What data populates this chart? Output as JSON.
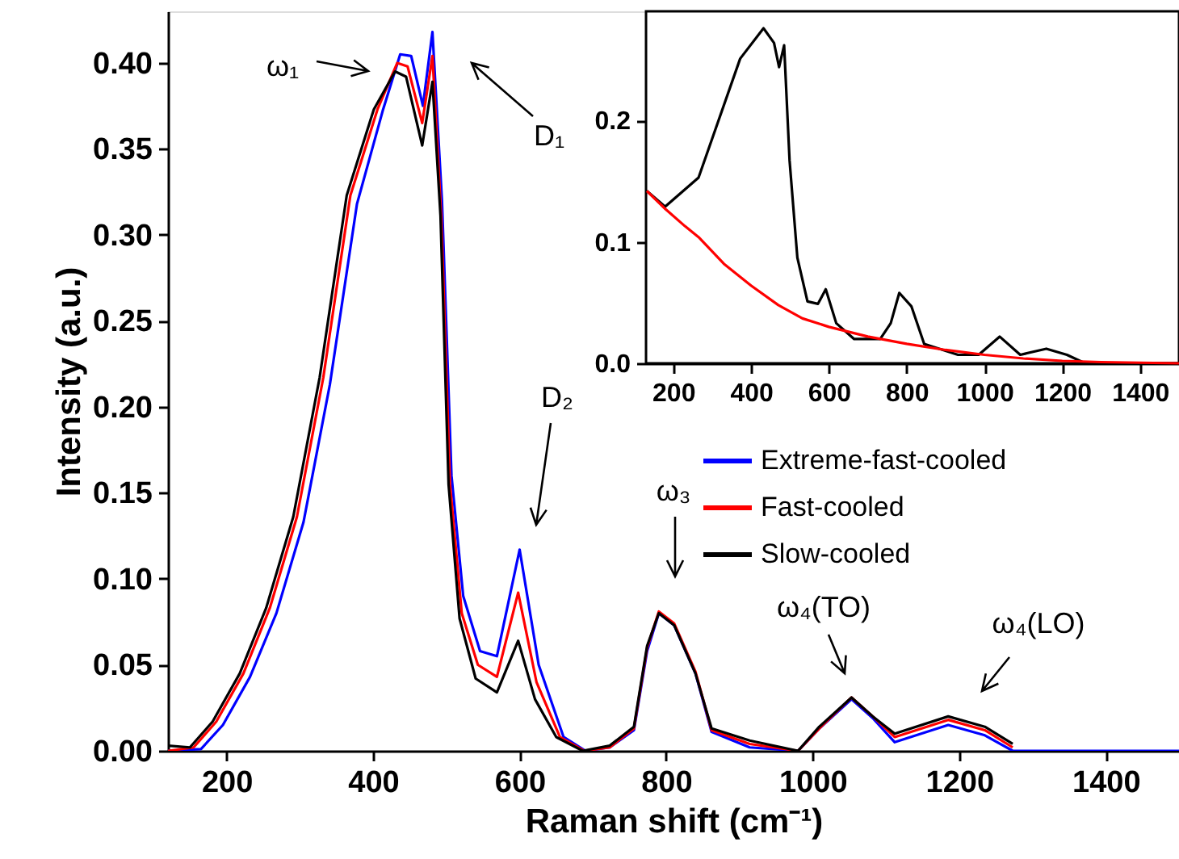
{
  "chart_data": [
    {
      "type": "line",
      "xlabel": "Raman shift (cm⁻¹)",
      "ylabel": "Intensity (a.u.)",
      "legend": "right",
      "grid": false,
      "xlim": [
        120,
        1500
      ],
      "ylim": [
        0,
        0.43
      ],
      "xticks": [
        200,
        400,
        600,
        800,
        1000,
        1200,
        1400
      ],
      "yticks": [
        {
          "value": 0,
          "label": "0.00"
        },
        0.05,
        {
          "value": 0.1,
          "label": "0.10"
        },
        0.15,
        {
          "value": 0.2,
          "label": "0.20"
        },
        0.25,
        {
          "value": 0.3,
          "label": "0.30"
        },
        0.35,
        {
          "value": 0.4,
          "label": "0.40"
        }
      ],
      "series": [
        {
          "name": "Extreme-fast-cooled",
          "color": "#0000ff",
          "x": [
            120,
            165,
            195,
            232,
            268,
            305,
            341,
            378,
            413,
            437,
            452,
            468,
            481,
            494,
            507,
            523,
            546,
            569,
            600,
            626,
            660,
            690,
            723,
            756,
            774,
            790,
            811,
            840,
            862,
            914,
            980,
            1009,
            1053,
            1082,
            1112,
            1185,
            1235,
            1273,
            1350,
            1500
          ],
          "values": [
            0.0,
            0.001,
            0.015,
            0.043,
            0.08,
            0.133,
            0.213,
            0.318,
            0.372,
            0.405,
            0.404,
            0.375,
            0.418,
            0.32,
            0.16,
            0.09,
            0.058,
            0.055,
            0.117,
            0.05,
            0.008,
            0.0,
            0.002,
            0.012,
            0.058,
            0.08,
            0.073,
            0.045,
            0.011,
            0.002,
            0.0,
            0.013,
            0.03,
            0.019,
            0.005,
            0.015,
            0.009,
            0.0,
            0.0,
            0.0
          ]
        },
        {
          "name": "Fast-cooled",
          "color": "#ff0000",
          "x": [
            120,
            155,
            186,
            223,
            259,
            296,
            332,
            369,
            406,
            433,
            447,
            467,
            481,
            493,
            505,
            521,
            543,
            569,
            598,
            623,
            655,
            688,
            723,
            756,
            774,
            790,
            811,
            840,
            862,
            914,
            980,
            1009,
            1053,
            1082,
            1112,
            1185,
            1235,
            1273
          ],
          "values": [
            0.0,
            0.002,
            0.017,
            0.045,
            0.083,
            0.136,
            0.217,
            0.323,
            0.373,
            0.4,
            0.398,
            0.365,
            0.404,
            0.311,
            0.155,
            0.08,
            0.05,
            0.043,
            0.092,
            0.04,
            0.008,
            0.0,
            0.002,
            0.013,
            0.06,
            0.081,
            0.074,
            0.046,
            0.012,
            0.004,
            0.0,
            0.013,
            0.031,
            0.02,
            0.008,
            0.018,
            0.012,
            0.002
          ]
        },
        {
          "name": "Slow-cooled",
          "color": "#000000",
          "x": [
            120,
            150,
            181,
            218,
            254,
            291,
            327,
            364,
            401,
            430,
            445,
            467,
            481,
            492,
            503,
            518,
            540,
            569,
            598,
            621,
            650,
            686,
            723,
            756,
            774,
            790,
            811,
            840,
            862,
            914,
            980,
            1009,
            1053,
            1082,
            1112,
            1185,
            1235,
            1273
          ],
          "values": [
            0.003,
            0.002,
            0.017,
            0.045,
            0.083,
            0.136,
            0.217,
            0.323,
            0.373,
            0.395,
            0.392,
            0.352,
            0.389,
            0.311,
            0.155,
            0.077,
            0.042,
            0.034,
            0.064,
            0.03,
            0.008,
            0.0,
            0.003,
            0.014,
            0.061,
            0.08,
            0.073,
            0.045,
            0.013,
            0.006,
            0.0,
            0.014,
            0.031,
            0.02,
            0.01,
            0.02,
            0.014,
            0.004
          ]
        }
      ],
      "annotations": [
        "ω₁",
        "D₁",
        "D₂",
        "ω₃",
        "ω₄(TO)",
        "ω₄(LO)"
      ]
    },
    {
      "type": "line",
      "grid": false,
      "xlim": [
        130,
        1500
      ],
      "ylim": [
        0,
        0.29
      ],
      "xticks": [
        200,
        400,
        600,
        800,
        1000,
        1200,
        1400
      ],
      "yticks": [
        {
          "value": 0,
          "label": "0.0"
        },
        {
          "value": 0.1,
          "label": "0.1"
        },
        {
          "value": 0.2,
          "label": "0.2"
        }
      ],
      "series": [
        {
          "color": "#000000",
          "x": [
            132,
            179,
            265,
            372,
            432,
            459,
            472,
            485,
            499,
            519,
            545,
            572,
            592,
            619,
            665,
            732,
            759,
            781,
            812,
            845,
            932,
            985,
            1039,
            1092,
            1159,
            1212,
            1252,
            1300,
            1500
          ],
          "values": [
            0.142,
            0.129,
            0.153,
            0.251,
            0.276,
            0.264,
            0.244,
            0.262,
            0.167,
            0.087,
            0.051,
            0.049,
            0.061,
            0.033,
            0.02,
            0.02,
            0.033,
            0.058,
            0.047,
            0.016,
            0.007,
            0.007,
            0.022,
            0.007,
            0.012,
            0.007,
            0.001,
            0.0,
            0.0
          ]
        },
        {
          "color": "#ff0000",
          "x": [
            132,
            180,
            230,
            265,
            330,
            400,
            470,
            532,
            600,
            700,
            800,
            900,
            1000,
            1100,
            1200,
            1300,
            1500
          ],
          "values": [
            0.142,
            0.127,
            0.113,
            0.104,
            0.082,
            0.064,
            0.048,
            0.037,
            0.03,
            0.022,
            0.016,
            0.011,
            0.007,
            0.004,
            0.002,
            0.001,
            0.0
          ]
        }
      ]
    }
  ]
}
